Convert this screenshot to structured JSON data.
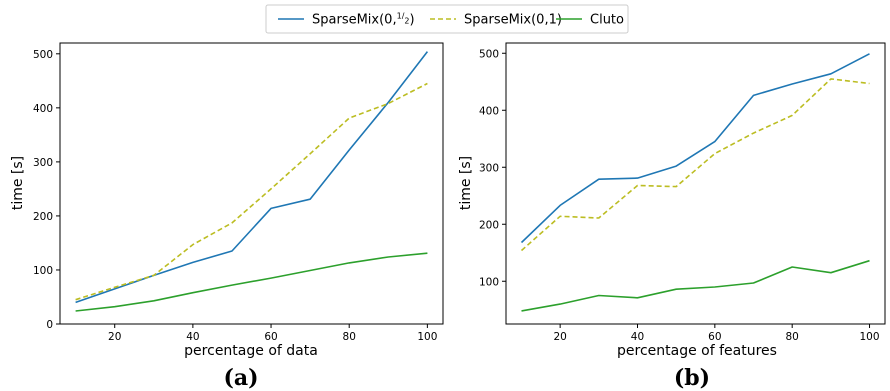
{
  "legend": {
    "entries": [
      {
        "label": "SparseMix(0,",
        "label_frac_num": "1",
        "label_frac_den": "2",
        "label_tail": ")",
        "color": "#1f77b4",
        "style": "solid"
      },
      {
        "label": "SparseMix(0,1)",
        "color": "#bcbd22",
        "style": "dashed"
      },
      {
        "label": "Cluto",
        "color": "#2ca02c",
        "style": "solid"
      }
    ]
  },
  "chart_data": [
    {
      "type": "line",
      "panel_label": "(a)",
      "xlabel": "percentage of data",
      "ylabel": "time [s]",
      "xlim": [
        6,
        104
      ],
      "ylim": [
        0,
        520
      ],
      "xticks": [
        20,
        40,
        60,
        80,
        100
      ],
      "yticks": [
        0,
        100,
        200,
        300,
        400,
        500
      ],
      "x": [
        10,
        20,
        30,
        40,
        50,
        60,
        70,
        80,
        90,
        100
      ],
      "series": [
        {
          "name": "SparseMix(0,1/2)",
          "color": "#1f77b4",
          "style": "solid",
          "values": [
            40,
            65,
            90,
            114,
            135,
            214,
            231,
            322,
            410,
            504
          ]
        },
        {
          "name": "SparseMix(0,1)",
          "color": "#bcbd22",
          "style": "dashed",
          "values": [
            45,
            68,
            90,
            147,
            187,
            250,
            315,
            381,
            408,
            445
          ]
        },
        {
          "name": "Cluto",
          "color": "#2ca02c",
          "style": "solid",
          "values": [
            24,
            32,
            43,
            58,
            72,
            85,
            99,
            113,
            124,
            131
          ]
        }
      ],
      "grid": false,
      "legend_placement": "top-center"
    },
    {
      "type": "line",
      "panel_label": "(b)",
      "xlabel": "percentage of features",
      "ylabel": "time [s]",
      "xlim": [
        6,
        104
      ],
      "ylim": [
        25,
        518
      ],
      "xticks": [
        20,
        40,
        60,
        80,
        100
      ],
      "yticks": [
        100,
        200,
        300,
        400,
        500
      ],
      "x": [
        10,
        20,
        30,
        40,
        50,
        60,
        70,
        80,
        90,
        100
      ],
      "series": [
        {
          "name": "SparseMix(0,1/2)",
          "color": "#1f77b4",
          "style": "solid",
          "values": [
            168,
            233,
            279,
            281,
            302,
            345,
            426,
            446,
            464,
            499
          ]
        },
        {
          "name": "SparseMix(0,1)",
          "color": "#bcbd22",
          "style": "dashed",
          "values": [
            154,
            214,
            211,
            268,
            266,
            324,
            360,
            391,
            455,
            447
          ]
        },
        {
          "name": "Cluto",
          "color": "#2ca02c",
          "style": "solid",
          "values": [
            48,
            60,
            75,
            71,
            86,
            90,
            97,
            125,
            115,
            136
          ]
        }
      ],
      "grid": false,
      "legend_placement": "top-center"
    }
  ]
}
